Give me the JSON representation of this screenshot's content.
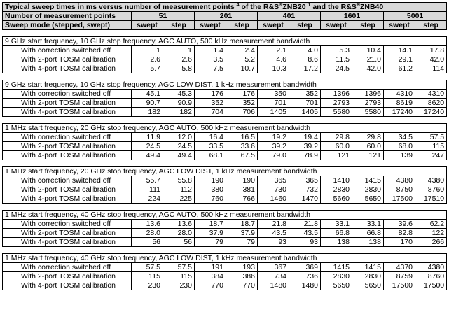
{
  "title_parts": [
    "Typical sweep times in ms versus number of measurement points ",
    "4",
    " of the R&S",
    "®",
    "ZNB20 ",
    "1",
    " and the R&S",
    "®",
    "ZNB40"
  ],
  "header": {
    "points_label": "Number of measurement points",
    "points": [
      "51",
      "201",
      "401",
      "1601",
      "5001"
    ],
    "mode_label": "Sweep mode (stepped, swept)",
    "modes": [
      "swept",
      "step",
      "swept",
      "step",
      "swept",
      "step",
      "swept",
      "step",
      "swept",
      "step"
    ]
  },
  "sections": [
    {
      "title": "9 GHz start frequency, 10 GHz stop frequency, AGC AUTO, 500 kHz measurement bandwidth",
      "rows": [
        {
          "label": "With correction switched off",
          "values": [
            "1",
            "1",
            "1.4",
            "2.4",
            "2.1",
            "4.0",
            "5.3",
            "10.4",
            "14.1",
            "17.8"
          ]
        },
        {
          "label": "With 2-port TOSM calibration",
          "values": [
            "2.6",
            "2.6",
            "3.5",
            "5.2",
            "4.6",
            "8.6",
            "11.5",
            "21.0",
            "29.1",
            "42.0"
          ]
        },
        {
          "label": "With 4-port TOSM calibration",
          "values": [
            "5.7",
            "5.8",
            "7.5",
            "10.7",
            "10.3",
            "17.2",
            "24.5",
            "42.0",
            "61.2",
            "114"
          ]
        }
      ]
    },
    {
      "title": "9 GHz start frequency, 10 GHz stop frequency, AGC LOW DIST, 1 kHz measurement bandwidth",
      "rows": [
        {
          "label": "With correction switched off",
          "values": [
            "45.1",
            "45.3",
            "176",
            "176",
            "350",
            "352",
            "1396",
            "1396",
            "4310",
            "4310"
          ]
        },
        {
          "label": "With 2-port TOSM calibration",
          "values": [
            "90.7",
            "90.9",
            "352",
            "352",
            "701",
            "701",
            "2793",
            "2793",
            "8619",
            "8620"
          ]
        },
        {
          "label": "With 4-port TOSM calibration",
          "values": [
            "182",
            "182",
            "704",
            "706",
            "1405",
            "1405",
            "5580",
            "5580",
            "17240",
            "17240"
          ]
        }
      ]
    },
    {
      "title": "1 MHz start frequency, 20 GHz stop frequency, AGC AUTO, 500 kHz measurement bandwidth",
      "rows": [
        {
          "label": "With correction switched off",
          "values": [
            "11.9",
            "12.0",
            "16.4",
            "16.5",
            "19.2",
            "19.4",
            "29.8",
            "29.8",
            "34.5",
            "57.5"
          ]
        },
        {
          "label": "With 2-port TOSM calibration",
          "values": [
            "24.5",
            "24.5",
            "33.5",
            "33.6",
            "39.2",
            "39.2",
            "60.0",
            "60.0",
            "68.0",
            "115"
          ]
        },
        {
          "label": "With 4-port TOSM calibration",
          "values": [
            "49.4",
            "49.4",
            "68.1",
            "67.5",
            "79.0",
            "78.9",
            "121",
            "121",
            "139",
            "247"
          ]
        }
      ]
    },
    {
      "title": "1 MHz start frequency, 20 GHz stop frequency, AGC LOW DIST, 1 kHz measurement bandwidth",
      "rows": [
        {
          "label": "With correction switched off",
          "values": [
            "55.7",
            "55.8",
            "190",
            "190",
            "365",
            "365",
            "1410",
            "1415",
            "4380",
            "4380"
          ]
        },
        {
          "label": "With 2-port TOSM calibration",
          "values": [
            "111",
            "112",
            "380",
            "381",
            "730",
            "732",
            "2830",
            "2830",
            "8750",
            "8760"
          ]
        },
        {
          "label": "With 4-port TOSM calibration",
          "values": [
            "224",
            "225",
            "760",
            "766",
            "1460",
            "1470",
            "5660",
            "5650",
            "17500",
            "17510"
          ]
        }
      ]
    },
    {
      "title": "1 MHz start frequency, 40 GHz stop frequency, AGC AUTO, 500 kHz measurement bandwidth",
      "rows": [
        {
          "label": "With correction switched off",
          "values": [
            "13.6",
            "13.6",
            "18.7",
            "18.7",
            "21.8",
            "21.8",
            "33.1",
            "33.1",
            "39.6",
            "62.2"
          ]
        },
        {
          "label": "With 2-port TOSM calibration",
          "values": [
            "28.0",
            "28.0",
            "37.9",
            "37.9",
            "43.5",
            "43.5",
            "66.8",
            "66.8",
            "82.8",
            "122"
          ]
        },
        {
          "label": "With 4-port TOSM calibration",
          "values": [
            "56",
            "56",
            "79",
            "79",
            "93",
            "93",
            "138",
            "138",
            "170",
            "266"
          ]
        }
      ]
    },
    {
      "title": "1 MHz start frequency, 40 GHz stop frequency, AGC LOW DIST, 1 kHz measurement bandwidth",
      "rows": [
        {
          "label": "With correction switched off",
          "values": [
            "57.5",
            "57.5",
            "191",
            "193",
            "367",
            "369",
            "1415",
            "1415",
            "4370",
            "4380"
          ]
        },
        {
          "label": "With 2-port TOSM calibration",
          "values": [
            "115",
            "115",
            "384",
            "386",
            "734",
            "736",
            "2830",
            "2830",
            "8759",
            "8760"
          ]
        },
        {
          "label": "With 4-port TOSM calibration",
          "values": [
            "230",
            "230",
            "770",
            "770",
            "1480",
            "1480",
            "5650",
            "5650",
            "17500",
            "17500"
          ]
        }
      ]
    }
  ]
}
